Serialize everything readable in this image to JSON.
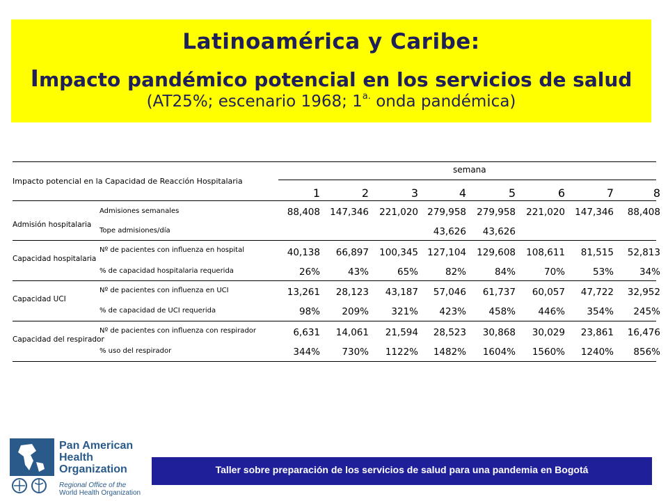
{
  "title": {
    "line1": "Latinoamérica y Caribe:",
    "line2_first": "I",
    "line2_rest": "mpacto pandémico potencial en los servicios de salud",
    "line3_pre": "(AT25%; escenario 1968; 1",
    "line3_sup": "a.",
    "line3_post": " onda pandémica)"
  },
  "table": {
    "caption": "Impacto potencial en la Capacidad de Reacción Hospitalaria",
    "week_header": "semana",
    "weeks": [
      "1",
      "2",
      "3",
      "4",
      "5",
      "6",
      "7",
      "8"
    ],
    "groups": [
      {
        "label": "Admisión hospitalaria",
        "rows": [
          {
            "label": "Admisiones semanales",
            "values": [
              "88,408",
              "147,346",
              "221,020",
              "279,958",
              "279,958",
              "221,020",
              "147,346",
              "88,408"
            ]
          },
          {
            "label": "Tope admisiones/día",
            "values": [
              "",
              "",
              "",
              "43,626",
              "43,626",
              "",
              "",
              ""
            ]
          }
        ]
      },
      {
        "label": "Capacidad hospitalaria",
        "rows": [
          {
            "label": "Nº de pacientes con influenza en hospital",
            "values": [
              "40,138",
              "66,897",
              "100,345",
              "127,104",
              "129,608",
              "108,611",
              "81,515",
              "52,813"
            ]
          },
          {
            "label": "% de capacidad  hospitalaria requerida",
            "values": [
              "26%",
              "43%",
              "65%",
              "82%",
              "84%",
              "70%",
              "53%",
              "34%"
            ]
          }
        ]
      },
      {
        "label": "Capacidad UCI",
        "rows": [
          {
            "label": "Nº de pacientes con influenza en UCI",
            "values": [
              "13,261",
              "28,123",
              "43,187",
              "57,046",
              "61,737",
              "60,057",
              "47,722",
              "32,952"
            ]
          },
          {
            "label": "% de capacidad de UCI requerida",
            "values": [
              "98%",
              "209%",
              "321%",
              "423%",
              "458%",
              "446%",
              "354%",
              "245%"
            ]
          }
        ]
      },
      {
        "label": "Capacidad del respirador",
        "rows": [
          {
            "label": "Nº de pacientes con influenza con respirador",
            "values": [
              "6,631",
              "14,061",
              "21,594",
              "28,523",
              "30,868",
              "30,029",
              "23,861",
              "16,476"
            ]
          },
          {
            "label": "% uso del respirador",
            "values": [
              "344%",
              "730%",
              "1122%",
              "1482%",
              "1604%",
              "1560%",
              "1240%",
              "856%"
            ]
          }
        ]
      }
    ]
  },
  "logo": {
    "name_lines": [
      "Pan American",
      "Health",
      "Organization"
    ],
    "sub_line1": "Regional Office of the",
    "sub_line2": "World Health Organization"
  },
  "footer": "Taller sobre preparación de los servicios de salud para una pandemia en Bogotá",
  "colors": {
    "title_bg": "#ffff00",
    "title_text": "#1f1f5a",
    "footer_bg": "#1f1f9a",
    "logo": "#2a5a8a"
  }
}
